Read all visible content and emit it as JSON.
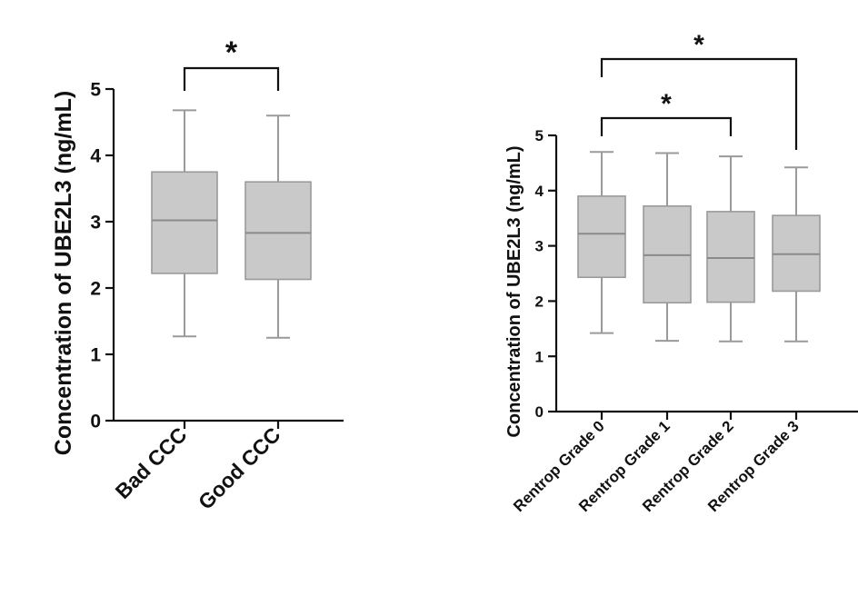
{
  "chart_data": [
    {
      "type": "box",
      "ylabel": "Concentration of UBE2L3 (ng/mL)",
      "ylim": [
        0,
        5
      ],
      "yticks": [
        0,
        1,
        2,
        3,
        4,
        5
      ],
      "categories": [
        "Bad CCC",
        "Good CCC"
      ],
      "boxes": [
        {
          "min": 1.27,
          "q1": 2.22,
          "median": 3.02,
          "q3": 3.75,
          "max": 4.68
        },
        {
          "min": 1.25,
          "q1": 2.13,
          "median": 2.83,
          "q3": 3.6,
          "max": 4.6
        }
      ],
      "significance": [
        {
          "from": 0,
          "to": 1,
          "label": "*"
        }
      ]
    },
    {
      "type": "box",
      "ylabel": "Concentration of UBE2L3 (ng/mL)",
      "ylim": [
        0,
        5
      ],
      "yticks": [
        0,
        1,
        2,
        3,
        4,
        5
      ],
      "categories": [
        "Rentrop Grade 0",
        "Rentrop Grade 1",
        "Rentrop Grade 2",
        "Rentrop Grade 3"
      ],
      "boxes": [
        {
          "min": 1.42,
          "q1": 2.43,
          "median": 3.22,
          "q3": 3.9,
          "max": 4.7
        },
        {
          "min": 1.28,
          "q1": 1.97,
          "median": 2.83,
          "q3": 3.72,
          "max": 4.68
        },
        {
          "min": 1.27,
          "q1": 1.98,
          "median": 2.78,
          "q3": 3.62,
          "max": 4.62
        },
        {
          "min": 1.27,
          "q1": 2.18,
          "median": 2.85,
          "q3": 3.55,
          "max": 4.42
        }
      ],
      "significance": [
        {
          "from": 0,
          "to": 2,
          "label": "*"
        },
        {
          "from": 0,
          "to": 3,
          "label": "*"
        }
      ]
    }
  ]
}
